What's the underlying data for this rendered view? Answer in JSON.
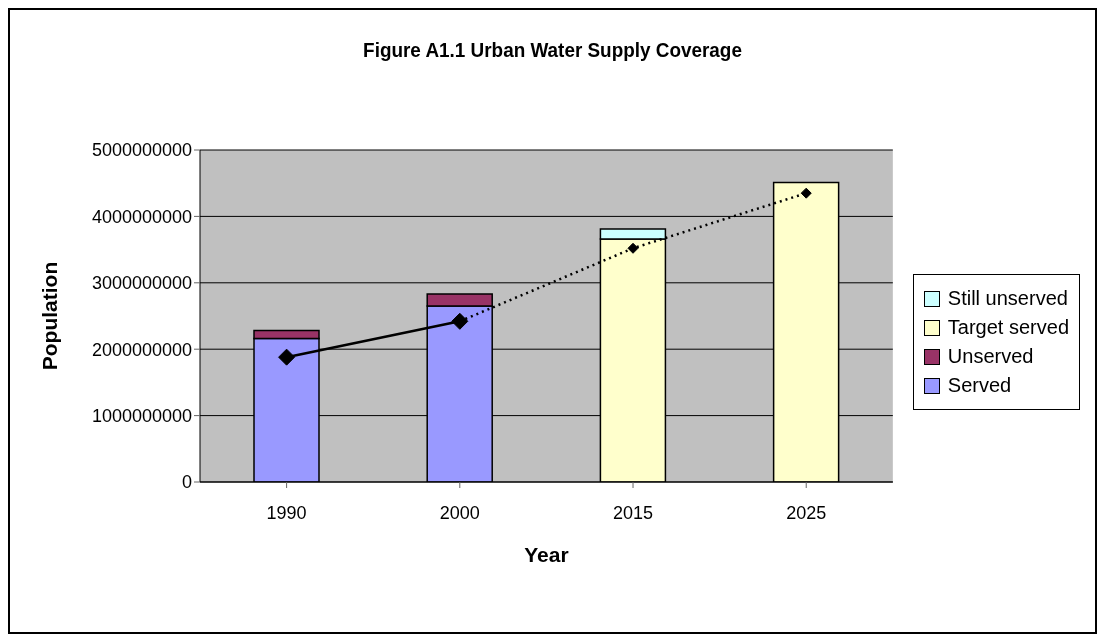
{
  "chart_data": {
    "type": "bar",
    "title": "Figure A1.1 Urban Water Supply Coverage",
    "xlabel": "Year",
    "ylabel": "Population",
    "categories": [
      "1990",
      "2000",
      "2015",
      "2025"
    ],
    "stacked": true,
    "series": [
      {
        "name": "Served",
        "color": "#9999ff",
        "values": [
          2160000000,
          2650000000,
          null,
          null
        ]
      },
      {
        "name": "Unserved",
        "color": "#993366",
        "values": [
          120000000,
          180000000,
          null,
          null
        ]
      },
      {
        "name": "Target served",
        "color": "#ffffcc",
        "values": [
          null,
          null,
          3660000000,
          4510000000
        ]
      },
      {
        "name": "Still unserved",
        "color": "#ccffff",
        "values": [
          null,
          null,
          150000000,
          null
        ]
      },
      {
        "type": "line",
        "color": "#000000",
        "line_style": "solid",
        "marker": "diamond",
        "values": [
          1880000000,
          2420000000,
          null,
          null
        ]
      },
      {
        "type": "line",
        "color": "#000000",
        "line_style": "dotted",
        "marker": "diamond",
        "values": [
          null,
          2420000000,
          3520000000,
          4350000000
        ]
      }
    ],
    "ylim": [
      0,
      5000000000
    ],
    "yticks": [
      0,
      1000000000,
      2000000000,
      3000000000,
      4000000000,
      5000000000
    ],
    "grid": "y",
    "legend": "right"
  }
}
